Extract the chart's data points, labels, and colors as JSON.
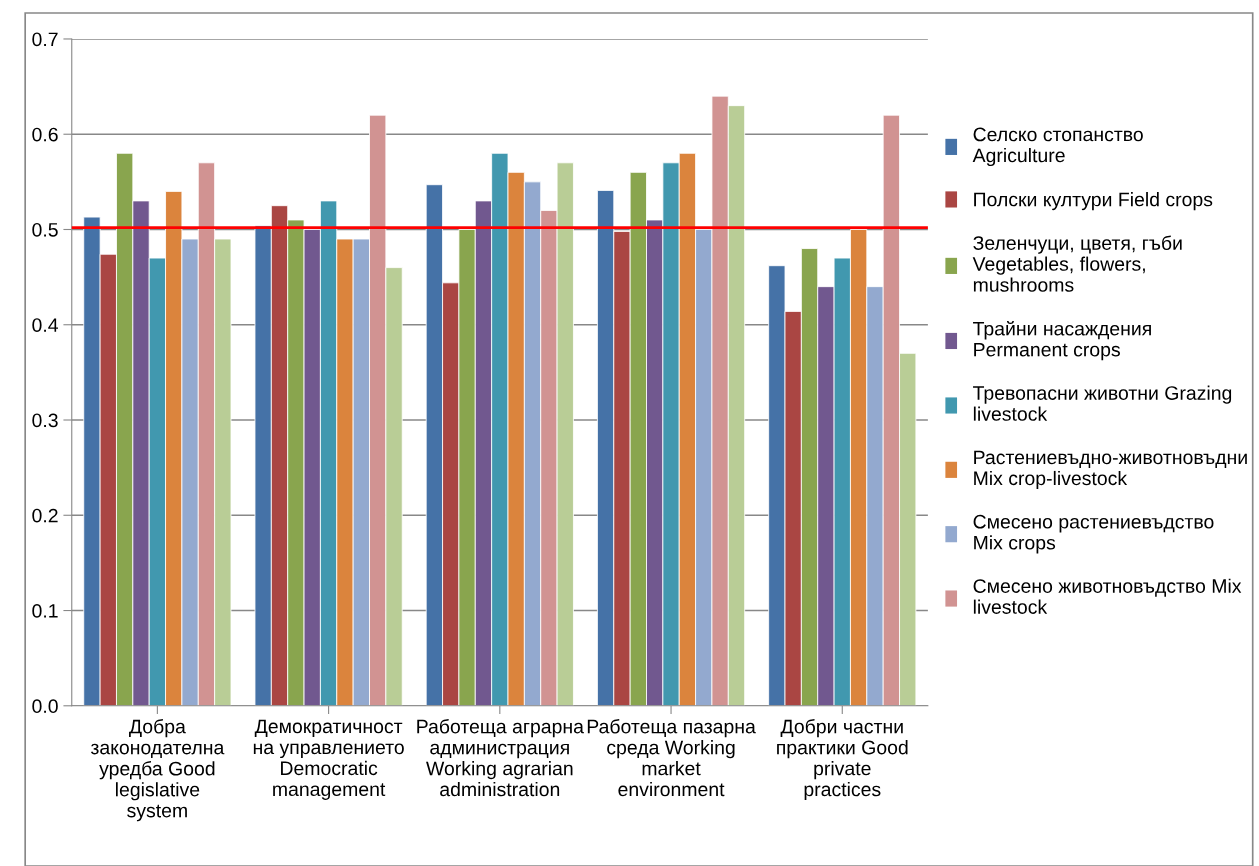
{
  "chart_data": {
    "type": "bar",
    "categories": [
      "Добра законодателна уредба Good legislative system",
      "Демократичност на управлението Democratic management",
      "Работеща аграрна администрация Working agrarian administration",
      "Работеща пазарна среда Working market environment",
      "Добри частни практики Good private practices"
    ],
    "series": [
      {
        "name": "Селско стопанство Agriculture",
        "color": "#4572a7",
        "values": [
          0.513,
          0.504,
          0.547,
          0.541,
          0.462
        ]
      },
      {
        "name": "Полски култури Field crops",
        "color": "#aa4643",
        "values": [
          0.474,
          0.525,
          0.444,
          0.498,
          0.414
        ]
      },
      {
        "name": "Зеленчуци, цветя, гъби Vegetables, flowers, mushrooms",
        "color": "#89a54e",
        "values": [
          0.58,
          0.51,
          0.5,
          0.56,
          0.48
        ]
      },
      {
        "name": "Трайни насаждения Permanent crops",
        "color": "#71588f",
        "values": [
          0.53,
          0.5,
          0.53,
          0.51,
          0.44
        ]
      },
      {
        "name": "Тревопасни животни Grazing livestock",
        "color": "#4198af",
        "values": [
          0.47,
          0.53,
          0.58,
          0.57,
          0.47
        ]
      },
      {
        "name": "Растениевъдно-животновъдни Mix crop-livestock",
        "color": "#db843d",
        "values": [
          0.54,
          0.49,
          0.56,
          0.58,
          0.5
        ]
      },
      {
        "name": "Смесено растениевъдство Mix crops",
        "color": "#93a9cf",
        "values": [
          0.49,
          0.49,
          0.55,
          0.5,
          0.44
        ]
      },
      {
        "name": "Смесено животновъдство Mix livestock",
        "color": "#d19392",
        "values": [
          0.57,
          0.62,
          0.52,
          0.64,
          0.62
        ]
      },
      {
        "color": "#b9cd96",
        "values": [
          0.49,
          0.46,
          0.57,
          0.63,
          0.37
        ]
      }
    ],
    "ylim": [
      0,
      0.7
    ],
    "yticks": [
      {
        "value": 0,
        "label": "0.0"
      },
      0.1,
      0.2,
      0.3,
      0.4,
      0.5,
      0.6,
      0.7
    ],
    "ref_lines": [
      {
        "axis": "y",
        "value": 0.502,
        "color": "#ff0000"
      }
    ],
    "grid": "y",
    "legend": "right"
  }
}
